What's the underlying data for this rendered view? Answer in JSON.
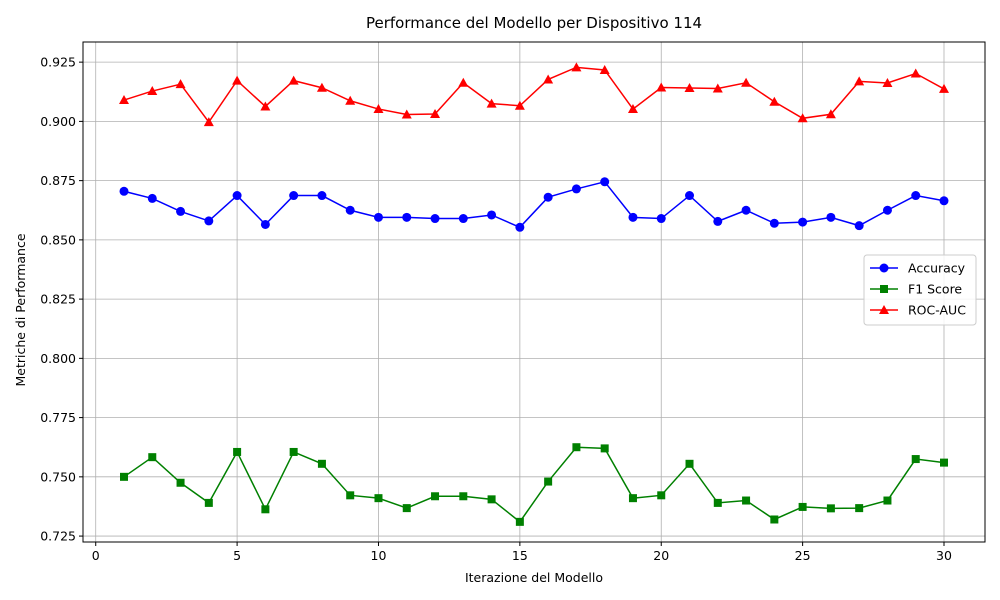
{
  "chart_data": {
    "type": "line",
    "title": "Performance del Modello per Dispositivo 114",
    "xlabel": "Iterazione del Modello",
    "ylabel": "Metriche di Performance",
    "xlim": [
      -0.45,
      31.45
    ],
    "ylim": [
      0.7225,
      0.9335
    ],
    "xticks": [
      0,
      5,
      10,
      15,
      20,
      25,
      30
    ],
    "xtick_labels": [
      "0",
      "5",
      "10",
      "15",
      "20",
      "25",
      "30"
    ],
    "yticks": [
      0.725,
      0.75,
      0.775,
      0.8,
      0.825,
      0.85,
      0.875,
      0.9,
      0.925
    ],
    "ytick_labels": [
      "0.725",
      "0.750",
      "0.775",
      "0.800",
      "0.825",
      "0.850",
      "0.875",
      "0.900",
      "0.925"
    ],
    "grid": true,
    "legend_position": "center-right",
    "x": [
      1,
      2,
      3,
      4,
      5,
      6,
      7,
      8,
      9,
      10,
      11,
      12,
      13,
      14,
      15,
      16,
      17,
      18,
      19,
      20,
      21,
      22,
      23,
      24,
      25,
      26,
      27,
      28,
      29,
      30
    ],
    "series": [
      {
        "name": "Accuracy",
        "color": "#0000ff",
        "marker": "circle",
        "values": [
          0.8705,
          0.8675,
          0.862,
          0.858,
          0.8687,
          0.8565,
          0.8687,
          0.8687,
          0.8625,
          0.8595,
          0.8595,
          0.859,
          0.859,
          0.8605,
          0.8553,
          0.868,
          0.8715,
          0.8745,
          0.8595,
          0.859,
          0.8687,
          0.8578,
          0.8625,
          0.857,
          0.8575,
          0.8595,
          0.856,
          0.8625,
          0.8687,
          0.8665
        ]
      },
      {
        "name": "F1 Score",
        "color": "#008000",
        "marker": "square",
        "values": [
          0.75,
          0.7583,
          0.7475,
          0.739,
          0.7605,
          0.7363,
          0.7605,
          0.7555,
          0.7422,
          0.741,
          0.7368,
          0.7418,
          0.7418,
          0.7405,
          0.731,
          0.748,
          0.7625,
          0.762,
          0.741,
          0.7422,
          0.7555,
          0.739,
          0.74,
          0.732,
          0.7373,
          0.7367,
          0.7368,
          0.74,
          0.7575,
          0.756
        ]
      },
      {
        "name": "ROC-AUC",
        "color": "#ff0000",
        "marker": "triangle",
        "values": [
          0.909,
          0.9128,
          0.9157,
          0.8997,
          0.9172,
          0.9063,
          0.9172,
          0.9142,
          0.9087,
          0.9052,
          0.9029,
          0.9031,
          0.9163,
          0.9075,
          0.9066,
          0.9177,
          0.9228,
          0.9217,
          0.9052,
          0.9143,
          0.9141,
          0.9139,
          0.9163,
          0.9083,
          0.9013,
          0.903,
          0.9169,
          0.9162,
          0.9202,
          0.9137
        ]
      }
    ]
  }
}
